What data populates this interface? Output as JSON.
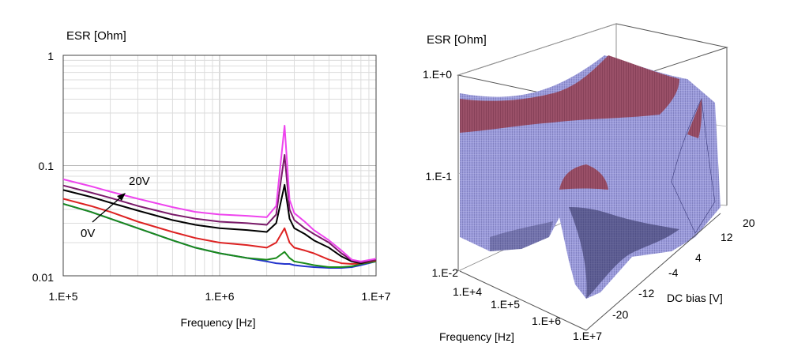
{
  "chart_data": [
    {
      "type": "line",
      "title": "",
      "ylabel": "ESR [Ohm]",
      "xlabel": "Frequency [Hz]",
      "xscale": "log",
      "yscale": "log",
      "xlim": [
        100000,
        10000000
      ],
      "ylim": [
        0.01,
        1
      ],
      "x_ticks": [
        "1.E+5",
        "1.E+6",
        "1.E+7"
      ],
      "y_ticks": [
        "0.01",
        "0.1",
        "1"
      ],
      "grid": true,
      "legend": "none",
      "annotations": {
        "high": "20V",
        "low": "0V"
      },
      "x": [
        100000,
        150000,
        200000,
        300000,
        500000,
        700000,
        1000000,
        1500000,
        2000000,
        2300000,
        2600000,
        2800000,
        3000000,
        3500000,
        4000000,
        5000000,
        6000000,
        7000000,
        8000000,
        10000000
      ],
      "series": [
        {
          "color": "#2233cc",
          "values": [
            0.045,
            0.038,
            0.033,
            0.027,
            0.021,
            0.018,
            0.016,
            0.0145,
            0.0135,
            0.013,
            0.0128,
            0.0128,
            0.0125,
            0.0122,
            0.012,
            0.0118,
            0.0118,
            0.012,
            0.0125,
            0.0135
          ]
        },
        {
          "color": "#1a8a1a",
          "values": [
            0.045,
            0.038,
            0.033,
            0.027,
            0.021,
            0.018,
            0.016,
            0.0145,
            0.014,
            0.0145,
            0.0165,
            0.0145,
            0.0135,
            0.013,
            0.0125,
            0.012,
            0.012,
            0.0122,
            0.0128,
            0.0135
          ]
        },
        {
          "color": "#dd2222",
          "values": [
            0.05,
            0.043,
            0.038,
            0.031,
            0.025,
            0.022,
            0.02,
            0.019,
            0.018,
            0.02,
            0.027,
            0.02,
            0.018,
            0.017,
            0.016,
            0.014,
            0.013,
            0.0128,
            0.013,
            0.0138
          ]
        },
        {
          "color": "#000000",
          "values": [
            0.06,
            0.052,
            0.046,
            0.039,
            0.032,
            0.029,
            0.027,
            0.026,
            0.025,
            0.03,
            0.067,
            0.033,
            0.027,
            0.024,
            0.021,
            0.018,
            0.015,
            0.0135,
            0.013,
            0.014
          ]
        },
        {
          "color": "#7a1a6a",
          "values": [
            0.066,
            0.057,
            0.051,
            0.043,
            0.036,
            0.033,
            0.031,
            0.03,
            0.029,
            0.036,
            0.125,
            0.04,
            0.032,
            0.027,
            0.024,
            0.02,
            0.016,
            0.0138,
            0.0132,
            0.014
          ]
        },
        {
          "color": "#ee44ee",
          "values": [
            0.075,
            0.065,
            0.058,
            0.05,
            0.042,
            0.038,
            0.036,
            0.035,
            0.034,
            0.043,
            0.23,
            0.049,
            0.037,
            0.031,
            0.026,
            0.021,
            0.017,
            0.014,
            0.0135,
            0.0143
          ]
        }
      ]
    },
    {
      "type": "surface",
      "title": "",
      "zlabel": "ESR [Ohm]",
      "xlabel": "Frequency [Hz]",
      "ylabel": "DC bias [V]",
      "x_ticks": [
        "1.E+4",
        "1.E+5",
        "1.E+6",
        "1.E+7"
      ],
      "y_ticks": [
        "-20",
        "-12",
        "-4",
        "4",
        "12",
        "20"
      ],
      "z_ticks": [
        "1.E-2",
        "1.E-1",
        "1.E+0"
      ],
      "zlim": [
        0.01,
        1
      ],
      "colors": {
        "low": "#a8a8e8",
        "high": "#a05a70"
      }
    }
  ]
}
